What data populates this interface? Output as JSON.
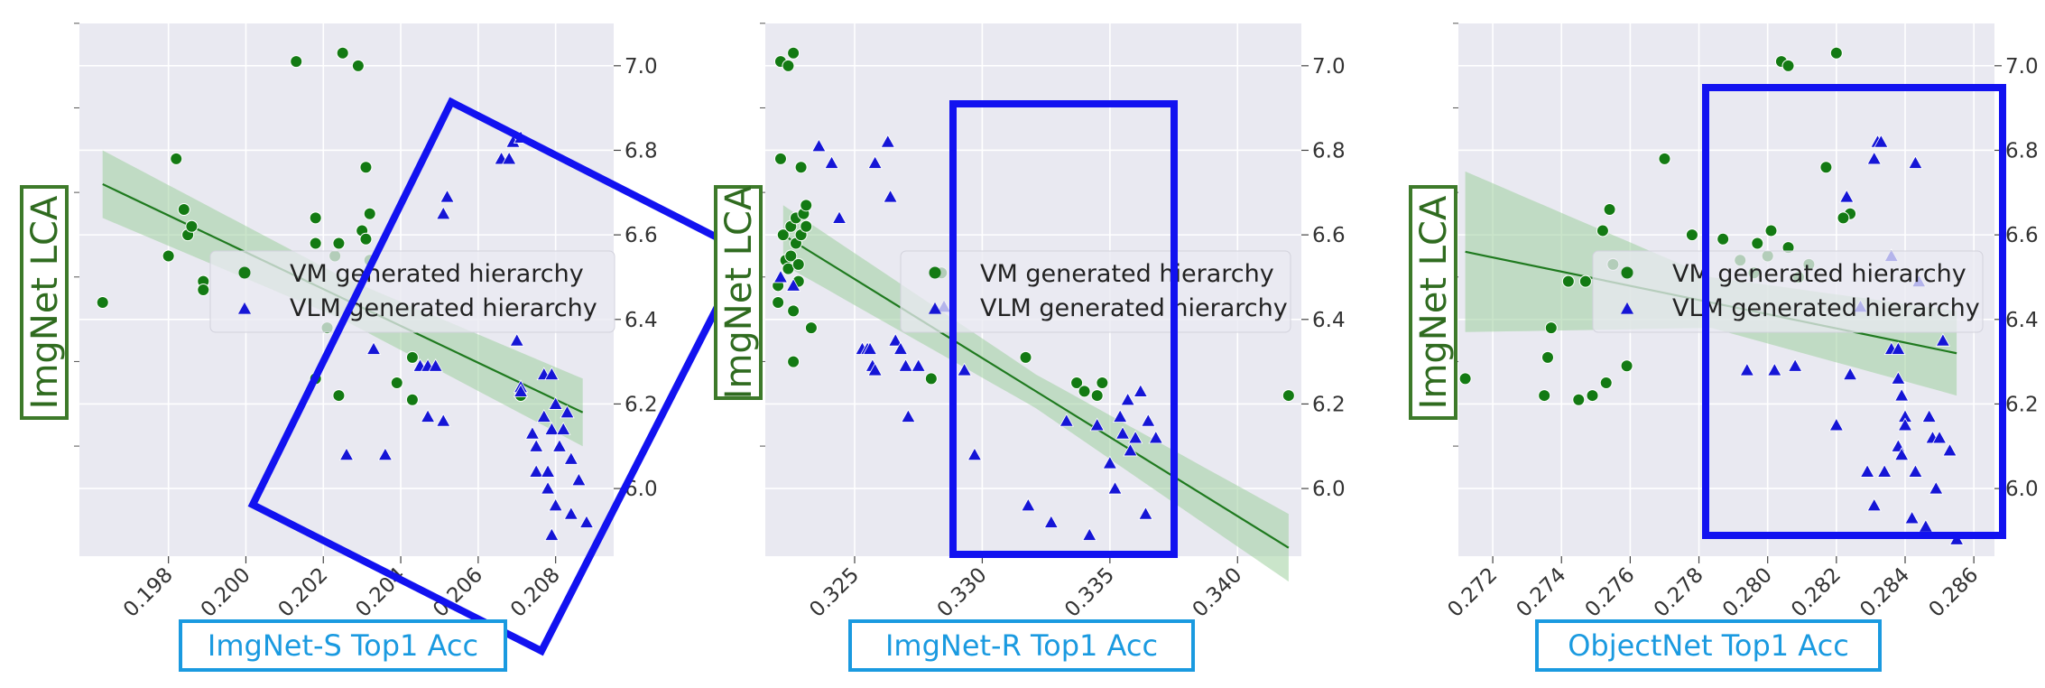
{
  "colors": {
    "panel_bg": "#e9e9f1",
    "grid": "#ffffff",
    "vm": "#137a13",
    "vlm": "#1515d6",
    "fit_line": "#1f7a1f",
    "fit_band": "#9fcf9f",
    "highlight_box": "#1212f0",
    "ylabel_border": "#3d7a2a",
    "ylabel_text": "#2f6b1f",
    "xlabel_border": "#1a9ae0",
    "xlabel_text": "#1a9ae0"
  },
  "chart_data": [
    {
      "type": "scatter",
      "ylabel": "ImgNet LCA",
      "xlabel": "ImgNet-S Top1 Acc",
      "xlim": [
        0.1957,
        0.2095
      ],
      "ylim": [
        5.84,
        7.1
      ],
      "xticks": [
        "0.198",
        "0.200",
        "0.202",
        "0.204",
        "0.206",
        "0.208"
      ],
      "yticks": [
        "6.0",
        "6.2",
        "6.4",
        "6.6",
        "6.8",
        "7.0"
      ],
      "legend": {
        "vm": "VM generated hierarchy",
        "vlm": "VLM generated hierarchy",
        "position": "center"
      },
      "series": [
        {
          "name": "VM generated hierarchy",
          "marker": "circle",
          "points": [
            [
              0.1963,
              6.44
            ],
            [
              0.198,
              6.55
            ],
            [
              0.1982,
              6.78
            ],
            [
              0.1984,
              6.66
            ],
            [
              0.1985,
              6.6
            ],
            [
              0.1986,
              6.62
            ],
            [
              0.1989,
              6.49
            ],
            [
              0.1989,
              6.47
            ],
            [
              0.2013,
              7.01
            ],
            [
              0.2018,
              6.64
            ],
            [
              0.2018,
              6.58
            ],
            [
              0.2021,
              6.38
            ],
            [
              0.2023,
              6.55
            ],
            [
              0.2024,
              6.58
            ],
            [
              0.2025,
              7.03
            ],
            [
              0.2029,
              7.0
            ],
            [
              0.203,
              6.61
            ],
            [
              0.2031,
              6.76
            ],
            [
              0.2031,
              6.59
            ],
            [
              0.2032,
              6.65
            ],
            [
              0.2032,
              6.54
            ],
            [
              0.2018,
              6.26
            ],
            [
              0.2024,
              6.22
            ],
            [
              0.2039,
              6.25
            ],
            [
              0.2043,
              6.21
            ],
            [
              0.2043,
              6.31
            ],
            [
              0.2071,
              6.22
            ]
          ]
        },
        {
          "name": "VLM generated hierarchy",
          "marker": "triangle",
          "points": [
            [
              0.2026,
              6.08
            ],
            [
              0.2033,
              6.33
            ],
            [
              0.2036,
              6.08
            ],
            [
              0.2045,
              6.29
            ],
            [
              0.2047,
              6.29
            ],
            [
              0.2047,
              6.17
            ],
            [
              0.2049,
              6.29
            ],
            [
              0.2051,
              6.16
            ],
            [
              0.2051,
              6.65
            ],
            [
              0.2052,
              6.69
            ],
            [
              0.2066,
              6.78
            ],
            [
              0.2068,
              6.78
            ],
            [
              0.2069,
              6.82
            ],
            [
              0.2071,
              6.83
            ],
            [
              0.207,
              6.35
            ],
            [
              0.2071,
              6.24
            ],
            [
              0.2071,
              6.23
            ],
            [
              0.2074,
              6.13
            ],
            [
              0.2075,
              6.04
            ],
            [
              0.2075,
              6.1
            ],
            [
              0.2077,
              6.27
            ],
            [
              0.2077,
              6.17
            ],
            [
              0.2078,
              6.04
            ],
            [
              0.2078,
              6.0
            ],
            [
              0.2079,
              6.27
            ],
            [
              0.2079,
              6.14
            ],
            [
              0.2079,
              5.89
            ],
            [
              0.208,
              6.2
            ],
            [
              0.208,
              5.96
            ],
            [
              0.2081,
              6.1
            ],
            [
              0.2082,
              6.14
            ],
            [
              0.2083,
              6.18
            ],
            [
              0.2084,
              6.07
            ],
            [
              0.2084,
              5.94
            ],
            [
              0.2086,
              6.02
            ],
            [
              0.2088,
              5.92
            ]
          ]
        }
      ],
      "fit": {
        "x": [
          0.1963,
          0.2087
        ],
        "y": [
          6.72,
          6.18
        ],
        "band_half_width": [
          0.08,
          0.05,
          0.08
        ]
      }
    },
    {
      "type": "scatter",
      "ylabel": "ImgNet LCA",
      "xlabel": "ImgNet-R Top1 Acc",
      "xlim": [
        0.3215,
        0.3425
      ],
      "ylim": [
        5.84,
        7.1
      ],
      "xticks": [
        "0.325",
        "0.330",
        "0.335",
        "0.340"
      ],
      "yticks": [
        "6.0",
        "6.2",
        "6.4",
        "6.6",
        "6.8",
        "7.0"
      ],
      "legend": {
        "vm": "VM generated hierarchy",
        "vlm": "VLM generated hierarchy",
        "position": "center"
      },
      "series": [
        {
          "name": "VM generated hierarchy",
          "marker": "circle",
          "points": [
            [
              0.322,
              6.44
            ],
            [
              0.322,
              6.48
            ],
            [
              0.3221,
              7.01
            ],
            [
              0.3224,
              7.0
            ],
            [
              0.3226,
              7.03
            ],
            [
              0.3221,
              6.78
            ],
            [
              0.3222,
              6.6
            ],
            [
              0.3223,
              6.54
            ],
            [
              0.3224,
              6.52
            ],
            [
              0.3225,
              6.55
            ],
            [
              0.3225,
              6.62
            ],
            [
              0.3226,
              6.42
            ],
            [
              0.3226,
              6.3
            ],
            [
              0.3227,
              6.64
            ],
            [
              0.3227,
              6.58
            ],
            [
              0.3228,
              6.49
            ],
            [
              0.3228,
              6.53
            ],
            [
              0.3229,
              6.6
            ],
            [
              0.3229,
              6.76
            ],
            [
              0.323,
              6.65
            ],
            [
              0.3231,
              6.62
            ],
            [
              0.3231,
              6.67
            ],
            [
              0.3233,
              6.38
            ],
            [
              0.3284,
              6.51
            ],
            [
              0.328,
              6.26
            ],
            [
              0.3317,
              6.31
            ],
            [
              0.3337,
              6.25
            ],
            [
              0.334,
              6.23
            ],
            [
              0.3345,
              6.22
            ],
            [
              0.3347,
              6.25
            ],
            [
              0.342,
              6.22
            ]
          ]
        },
        {
          "name": "VLM generated hierarchy",
          "marker": "triangle",
          "points": [
            [
              0.3221,
              6.5
            ],
            [
              0.3226,
              6.48
            ],
            [
              0.3236,
              6.81
            ],
            [
              0.3241,
              6.77
            ],
            [
              0.3244,
              6.64
            ],
            [
              0.3253,
              6.33
            ],
            [
              0.3255,
              6.33
            ],
            [
              0.3256,
              6.33
            ],
            [
              0.3257,
              6.29
            ],
            [
              0.3258,
              6.28
            ],
            [
              0.3258,
              6.77
            ],
            [
              0.3263,
              6.82
            ],
            [
              0.3264,
              6.69
            ],
            [
              0.3266,
              6.35
            ],
            [
              0.3268,
              6.33
            ],
            [
              0.327,
              6.29
            ],
            [
              0.3271,
              6.17
            ],
            [
              0.3275,
              6.29
            ],
            [
              0.3285,
              6.43
            ],
            [
              0.3293,
              6.28
            ],
            [
              0.3297,
              6.08
            ],
            [
              0.3318,
              5.96
            ],
            [
              0.3327,
              5.92
            ],
            [
              0.3333,
              6.16
            ],
            [
              0.3342,
              5.89
            ],
            [
              0.3345,
              6.15
            ],
            [
              0.335,
              6.06
            ],
            [
              0.3352,
              6.0
            ],
            [
              0.3354,
              6.17
            ],
            [
              0.3355,
              6.13
            ],
            [
              0.3357,
              6.21
            ],
            [
              0.3358,
              6.09
            ],
            [
              0.336,
              6.12
            ],
            [
              0.3362,
              6.23
            ],
            [
              0.3364,
              5.94
            ],
            [
              0.3365,
              6.16
            ],
            [
              0.3368,
              6.12
            ]
          ]
        }
      ],
      "fit": {
        "x": [
          0.3222,
          0.342
        ],
        "y": [
          6.6,
          5.86
        ],
        "band_half_width": [
          0.07,
          0.04,
          0.08
        ]
      }
    },
    {
      "type": "scatter",
      "ylabel": "ImgNet LCA",
      "xlabel": "ObjectNet Top1 Acc",
      "xlim": [
        0.271,
        0.2866
      ],
      "ylim": [
        5.84,
        7.1
      ],
      "xticks": [
        "0.272",
        "0.274",
        "0.276",
        "0.278",
        "0.280",
        "0.282",
        "0.284",
        "0.286"
      ],
      "yticks": [
        "6.0",
        "6.2",
        "6.4",
        "6.6",
        "6.8",
        "7.0"
      ],
      "legend": {
        "vm": "VM generated hierarchy",
        "vlm": "VLM generated hierarchy",
        "position": "center"
      },
      "series": [
        {
          "name": "VM generated hierarchy",
          "marker": "circle",
          "points": [
            [
              0.2712,
              6.26
            ],
            [
              0.2735,
              6.22
            ],
            [
              0.2736,
              6.31
            ],
            [
              0.2737,
              6.38
            ],
            [
              0.2742,
              6.49
            ],
            [
              0.2745,
              6.21
            ],
            [
              0.2747,
              6.49
            ],
            [
              0.2749,
              6.22
            ],
            [
              0.2752,
              6.61
            ],
            [
              0.2753,
              6.25
            ],
            [
              0.2754,
              6.66
            ],
            [
              0.2755,
              6.53
            ],
            [
              0.2759,
              6.29
            ],
            [
              0.277,
              6.78
            ],
            [
              0.2778,
              6.6
            ],
            [
              0.2787,
              6.59
            ],
            [
              0.2792,
              6.54
            ],
            [
              0.2796,
              6.51
            ],
            [
              0.2797,
              6.58
            ],
            [
              0.28,
              6.55
            ],
            [
              0.2801,
              6.61
            ],
            [
              0.2804,
              7.01
            ],
            [
              0.2806,
              7.0
            ],
            [
              0.2806,
              6.57
            ],
            [
              0.2809,
              6.5
            ],
            [
              0.2812,
              6.53
            ],
            [
              0.2817,
              6.76
            ],
            [
              0.282,
              7.03
            ],
            [
              0.2824,
              6.65
            ],
            [
              0.2822,
              6.64
            ]
          ]
        },
        {
          "name": "VLM generated hierarchy",
          "marker": "triangle",
          "points": [
            [
              0.2794,
              6.28
            ],
            [
              0.2802,
              6.28
            ],
            [
              0.2808,
              6.29
            ],
            [
              0.282,
              6.15
            ],
            [
              0.2823,
              6.69
            ],
            [
              0.2824,
              6.27
            ],
            [
              0.2827,
              6.43
            ],
            [
              0.2829,
              6.04
            ],
            [
              0.2831,
              5.96
            ],
            [
              0.2831,
              6.78
            ],
            [
              0.2832,
              6.82
            ],
            [
              0.2833,
              6.82
            ],
            [
              0.2834,
              6.04
            ],
            [
              0.2836,
              6.55
            ],
            [
              0.2836,
              6.33
            ],
            [
              0.2838,
              6.33
            ],
            [
              0.2838,
              6.26
            ],
            [
              0.2838,
              6.1
            ],
            [
              0.2839,
              6.22
            ],
            [
              0.2839,
              6.08
            ],
            [
              0.284,
              6.17
            ],
            [
              0.284,
              6.15
            ],
            [
              0.2842,
              5.93
            ],
            [
              0.2843,
              6.77
            ],
            [
              0.2843,
              6.04
            ],
            [
              0.2844,
              6.49
            ],
            [
              0.2846,
              5.91
            ],
            [
              0.2847,
              6.17
            ],
            [
              0.2848,
              6.12
            ],
            [
              0.2849,
              6.0
            ],
            [
              0.285,
              6.12
            ],
            [
              0.2851,
              6.35
            ],
            [
              0.2853,
              6.09
            ],
            [
              0.2855,
              5.88
            ]
          ]
        }
      ],
      "fit": {
        "x": [
          0.2712,
          0.2855
        ],
        "y": [
          6.56,
          6.32
        ],
        "band_half_width": [
          0.19,
          0.06,
          0.1
        ]
      }
    }
  ]
}
